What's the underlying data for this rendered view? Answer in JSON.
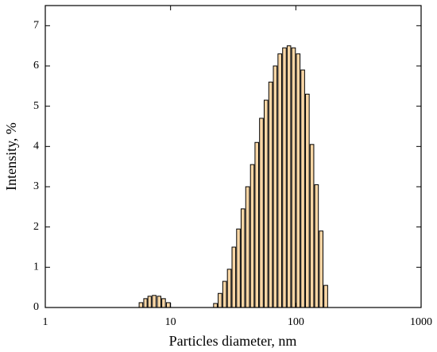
{
  "chart_data": {
    "type": "bar",
    "x_axis_label": "Particles diameter, nm",
    "y_axis_label": "Intensity, %",
    "x": [
      5.8,
      6.3,
      6.8,
      7.4,
      8.1,
      8.8,
      9.6,
      22.8,
      24.8,
      27.0,
      29.4,
      32.0,
      34.8,
      37.8,
      41.2,
      44.9,
      48.8,
      53.1,
      57.8,
      62.9,
      68.4,
      74.5,
      81.1,
      88.1,
      95.9,
      104.4,
      113.6,
      123.6,
      134.5,
      146.3,
      159.2,
      173.4
    ],
    "values": [
      0.12,
      0.22,
      0.28,
      0.3,
      0.28,
      0.22,
      0.12,
      0.1,
      0.35,
      0.65,
      0.95,
      1.5,
      1.95,
      2.45,
      3.0,
      3.55,
      4.1,
      4.7,
      5.15,
      5.6,
      6.0,
      6.3,
      6.45,
      6.5,
      6.45,
      6.3,
      5.9,
      5.3,
      4.05,
      3.05,
      1.9,
      0.55
    ],
    "color": "#f9d6a5",
    "log_x": true,
    "xlim": [
      1,
      1000
    ],
    "xticks": [
      1,
      10,
      100,
      1000
    ],
    "ylim": [
      0,
      7.5
    ],
    "yticks": [
      0,
      1,
      2,
      3,
      4,
      5,
      6,
      7
    ]
  }
}
